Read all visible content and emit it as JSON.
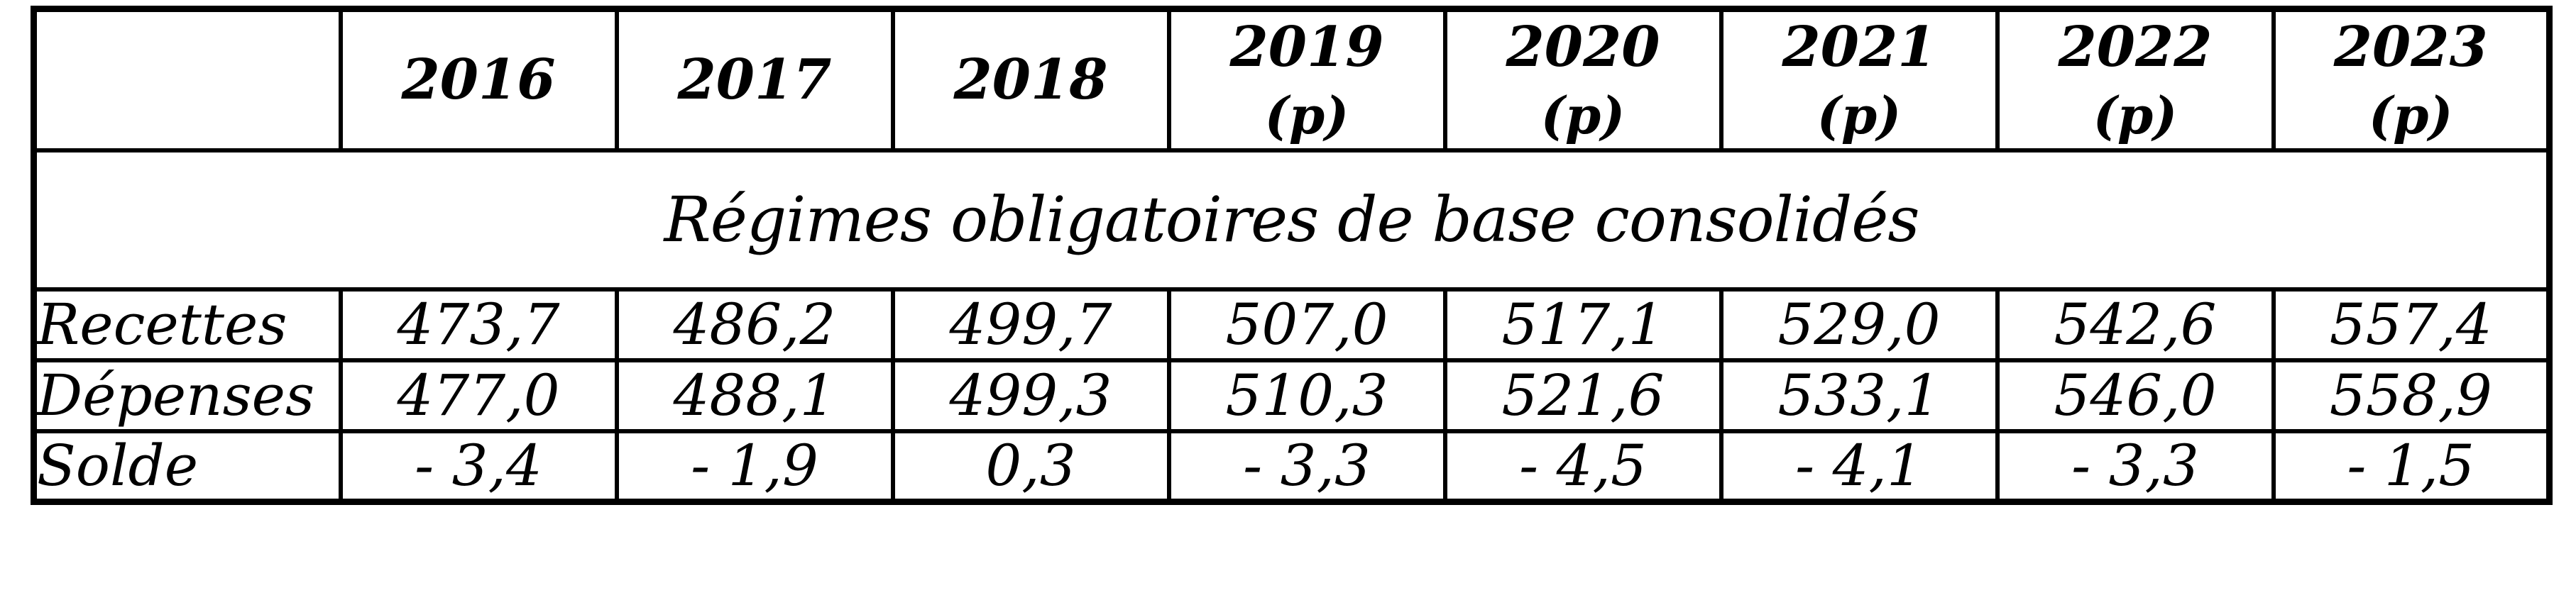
{
  "table": {
    "header": {
      "corner": "",
      "years": [
        {
          "label": "2016",
          "note": ""
        },
        {
          "label": "2017",
          "note": ""
        },
        {
          "label": "2018",
          "note": ""
        },
        {
          "label": "2019",
          "note": "(p)"
        },
        {
          "label": "2020",
          "note": "(p)"
        },
        {
          "label": "2021",
          "note": "(p)"
        },
        {
          "label": "2022",
          "note": "(p)"
        },
        {
          "label": "2023",
          "note": "(p)"
        }
      ]
    },
    "section_title": "Régimes obligatoires de base consolidés",
    "rows": [
      {
        "label": "Recettes",
        "values": [
          "473,7",
          "486,2",
          "499,7",
          "507,0",
          "517,1",
          "529,0",
          "542,6",
          "557,4"
        ]
      },
      {
        "label": "Dépenses",
        "values": [
          "477,0",
          "488,1",
          "499,3",
          "510,3",
          "521,6",
          "533,1",
          "546,0",
          "558,9"
        ]
      },
      {
        "label": "Solde",
        "values": [
          "- 3,4",
          "- 1,9",
          "0,3",
          "- 3,3",
          "- 4,5",
          "- 4,1",
          "- 3,3",
          "- 1,5"
        ]
      }
    ],
    "colors": {
      "border": "#000000",
      "background": "#ffffff",
      "text": "#000000"
    }
  }
}
